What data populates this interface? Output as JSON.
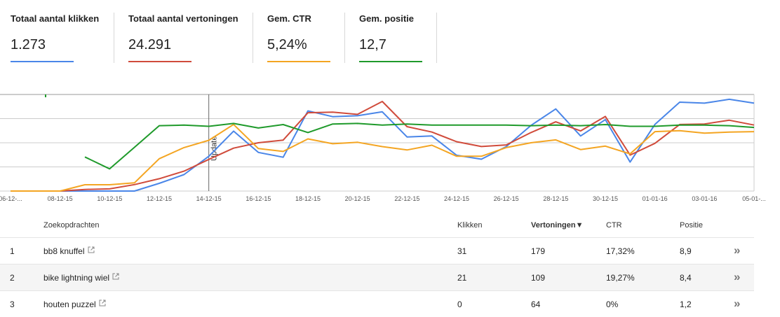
{
  "metrics": [
    {
      "label": "Totaal aantal klikken",
      "value": "1.273",
      "color": "#4a86e8"
    },
    {
      "label": "Totaal aantal vertoningen",
      "value": "24.291",
      "color": "#d04b3b"
    },
    {
      "label": "Gem. CTR",
      "value": "5,24%",
      "color": "#f4a522"
    },
    {
      "label": "Gem. positie",
      "value": "12,7",
      "color": "#1f9a2b"
    }
  ],
  "chart": {
    "x_labels": [
      "06-12-...",
      "08-12-15",
      "10-12-15",
      "12-12-15",
      "14-12-15",
      "16-12-15",
      "18-12-15",
      "20-12-15",
      "22-12-15",
      "24-12-15",
      "26-12-15",
      "28-12-15",
      "30-12-15",
      "01-01-16",
      "03-01-16",
      "05-01-..."
    ],
    "annotation": "Update",
    "gridlines": true
  },
  "chart_data": {
    "type": "line",
    "x": [
      "06-12-15",
      "07-12-15",
      "08-12-15",
      "09-12-15",
      "10-12-15",
      "11-12-15",
      "12-12-15",
      "13-12-15",
      "14-12-15",
      "15-12-15",
      "16-12-15",
      "17-12-15",
      "18-12-15",
      "19-12-15",
      "20-12-15",
      "21-12-15",
      "22-12-15",
      "23-12-15",
      "24-12-15",
      "25-12-15",
      "26-12-15",
      "27-12-15",
      "28-12-15",
      "29-12-15",
      "30-12-15",
      "31-12-15",
      "01-01-16",
      "02-01-16",
      "03-01-16",
      "04-01-16",
      "05-01-16"
    ],
    "series": [
      {
        "name": "Totaal aantal klikken",
        "color": "#4a86e8",
        "values": [
          0,
          0,
          0,
          0,
          0,
          0,
          0.8,
          1.7,
          3.6,
          6.2,
          4.0,
          3.5,
          8.3,
          7.7,
          7.8,
          8.2,
          5.6,
          5.7,
          3.7,
          3.3,
          4.6,
          6.8,
          8.5,
          5.7,
          7.4,
          3.0,
          6.9,
          9.2,
          9.1,
          9.5,
          9.1
        ]
      },
      {
        "name": "Totaal aantal vertoningen",
        "color": "#d04b3b",
        "values": [
          0,
          0,
          0,
          0.3,
          0.4,
          1.2,
          2.3,
          3.7,
          5.9,
          8.0,
          9.0,
          9.5,
          14.6,
          14.7,
          14.3,
          16.7,
          12.0,
          11.0,
          9.2,
          8.3,
          8.6,
          10.9,
          12.9,
          11.2,
          13.9,
          6.7,
          8.9,
          12.4,
          12.5,
          13.2,
          12.3
        ]
      },
      {
        "name": "Gem. CTR",
        "color": "#f4a522",
        "values": [
          0,
          0,
          0,
          0.13,
          0.13,
          0.17,
          0.67,
          0.9,
          1.05,
          1.38,
          0.88,
          0.82,
          1.08,
          0.98,
          1.01,
          0.92,
          0.85,
          0.95,
          0.72,
          0.72,
          0.9,
          1.0,
          1.06,
          0.86,
          0.93,
          0.77,
          1.23,
          1.25,
          1.2,
          1.22,
          1.23
        ]
      },
      {
        "name": "Gem. positie",
        "color": "#1f9a2b",
        "values": [
          null,
          null,
          null,
          11.0,
          13.1,
          9.3,
          5.5,
          5.4,
          5.6,
          5.1,
          5.9,
          5.3,
          6.7,
          5.2,
          5.1,
          5.4,
          5.2,
          5.4,
          5.4,
          5.4,
          5.4,
          5.5,
          5.4,
          5.5,
          5.3,
          5.6,
          5.6,
          5.4,
          5.4,
          5.5,
          5.8
        ]
      }
    ],
    "outlier_point": {
      "series": "Gem. positie",
      "x": "06-12-15",
      "value": 0.2
    },
    "ylim_per_series": {
      "Totaal aantal klikken": [
        0,
        10
      ],
      "Totaal aantal vertoningen": [
        0,
        18
      ],
      "Gem. CTR": [
        0,
        2
      ],
      "Gem. positie": [
        0,
        17
      ]
    },
    "annotation": {
      "x": "14-12-15",
      "label": "Update"
    }
  },
  "table": {
    "headers": {
      "query": "Zoekopdrachten",
      "clicks": "Klikken",
      "impressions": "Vertoningen",
      "ctr": "CTR",
      "position": "Positie"
    },
    "sort_indicator": "▼",
    "rows": [
      {
        "index": "1",
        "query": "bb8 knuffel",
        "clicks": "31",
        "impressions": "179",
        "ctr": "17,32%",
        "position": "8,9"
      },
      {
        "index": "2",
        "query": "bike lightning wiel",
        "clicks": "21",
        "impressions": "109",
        "ctr": "19,27%",
        "position": "8,4"
      },
      {
        "index": "3",
        "query": "houten puzzel",
        "clicks": "0",
        "impressions": "64",
        "ctr": "0%",
        "position": "1,2"
      }
    ],
    "row_action_icon": "double-chevron-right-icon"
  }
}
